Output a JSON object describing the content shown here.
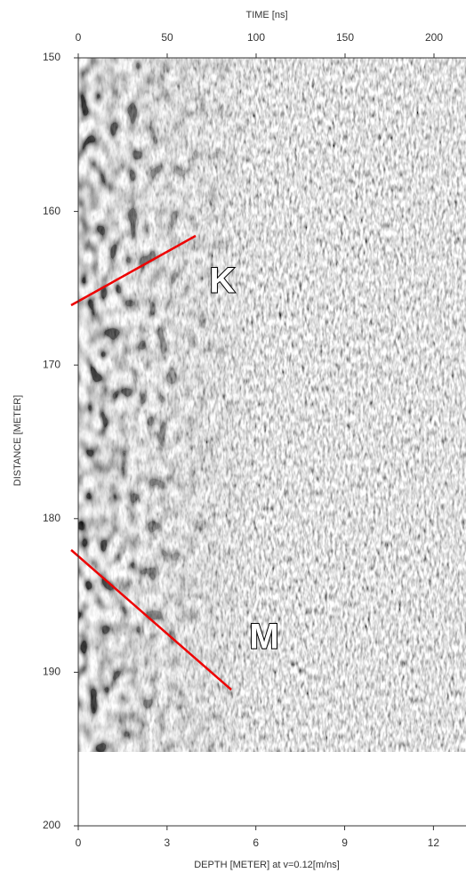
{
  "chart_data": {
    "type": "radargram",
    "x_label": "TIME [ns]",
    "y_label": "DISTANCE [METER]",
    "x2_label": "DEPTH [METER] at v=0.12[m/ns]",
    "xlim": [
      0,
      218
    ],
    "xticks": [
      0,
      50,
      100,
      150,
      200
    ],
    "x2lim": [
      0,
      13.1
    ],
    "x2ticks": [
      0,
      3,
      6,
      9,
      12
    ],
    "ylim": [
      150,
      200
    ],
    "yticks": [
      150,
      160,
      170,
      180,
      190,
      200
    ],
    "annotations": [
      "K",
      "M"
    ]
  }
}
